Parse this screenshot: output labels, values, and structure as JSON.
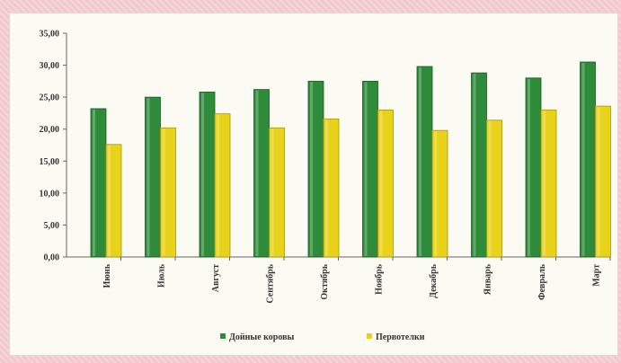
{
  "chart_data": {
    "type": "bar",
    "categories": [
      "Июнь",
      "Июль",
      "Август",
      "Сентябрь",
      "Октябрь",
      "Ноябрь",
      "Декабрь",
      "Январь",
      "Февраль",
      "Март"
    ],
    "series": [
      {
        "name": "Дойные коровы",
        "color": "#2e8b3a",
        "values": [
          23.2,
          25.0,
          25.8,
          26.2,
          27.5,
          27.5,
          29.8,
          28.8,
          28.0,
          30.5
        ]
      },
      {
        "name": "Первотелки",
        "color": "#e8d21a",
        "values": [
          17.6,
          20.2,
          22.4,
          20.2,
          21.6,
          23.0,
          19.8,
          21.4,
          23.0,
          23.6
        ]
      }
    ],
    "yticks": [
      "0,00",
      "5,00",
      "10,00",
      "15,00",
      "20,00",
      "25,00",
      "30,00",
      "35,00"
    ],
    "ylim": [
      0,
      35
    ],
    "grid": false,
    "legend": "bottom"
  }
}
